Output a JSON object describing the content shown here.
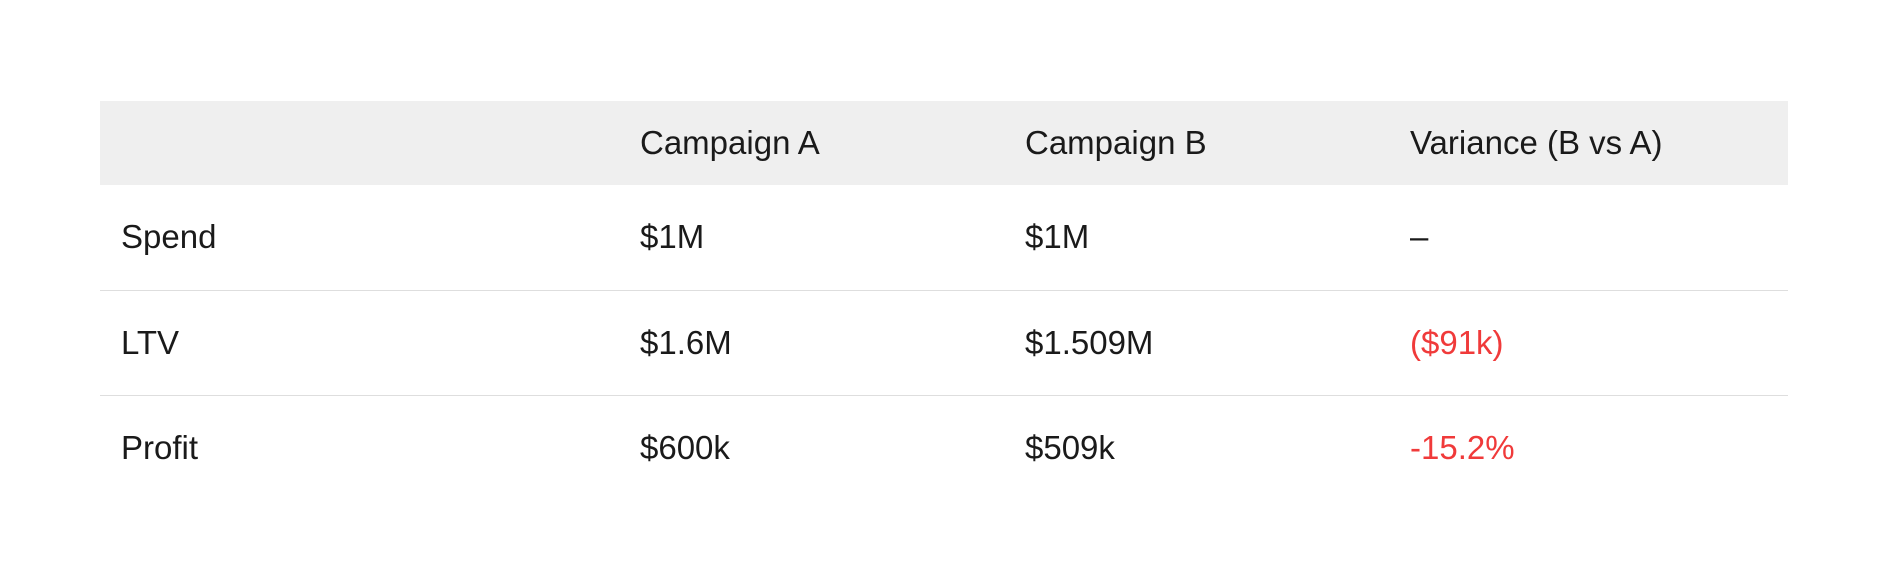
{
  "table": {
    "headers": [
      "",
      "Campaign A",
      "Campaign B",
      "Variance (B vs A)"
    ],
    "rows": [
      {
        "label": "Spend",
        "campaign_a": "$1M",
        "campaign_b": "$1M",
        "variance": "–"
      },
      {
        "label": "LTV",
        "campaign_a": "$1.6M",
        "campaign_b": "$1.509M",
        "variance": "($91k)"
      },
      {
        "label": "Profit",
        "campaign_a": "$600k",
        "campaign_b": "$509k",
        "variance": "-15.2%"
      }
    ]
  },
  "colors": {
    "header_background": "#efefef",
    "negative_value": "#f03a3a",
    "row_divider": "#dedede"
  }
}
